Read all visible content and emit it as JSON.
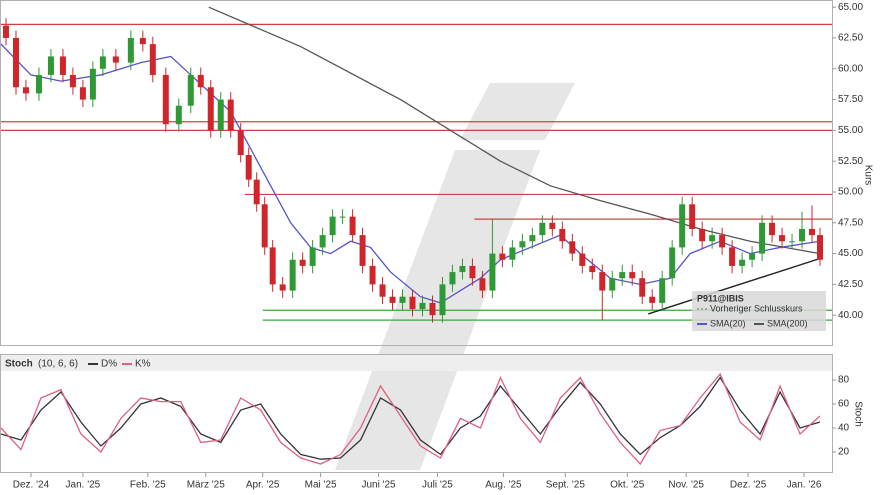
{
  "chart_data": [
    {
      "type": "candlestick",
      "ylabel": "Kurs",
      "xlim": [
        0,
        416
      ],
      "ylim": [
        37.5,
        65.5
      ],
      "yticks": [
        {
          "value": 40,
          "label": "40.00"
        },
        {
          "value": 42.5,
          "label": "42.50"
        },
        {
          "value": 45,
          "label": "45.00"
        },
        {
          "value": 47.5,
          "label": "47.50"
        },
        {
          "value": 50,
          "label": "50.00"
        },
        {
          "value": 52.5,
          "label": "52.50"
        },
        {
          "value": 55,
          "label": "55.00"
        },
        {
          "value": 57.5,
          "label": "57.50"
        },
        {
          "value": 60,
          "label": "60.00"
        },
        {
          "value": 62.5,
          "label": "62.50"
        },
        {
          "value": 65,
          "label": "65.00"
        }
      ],
      "xticks": [
        {
          "value": 15,
          "label": "Dez. '24"
        },
        {
          "value": 41,
          "label": "Jan. '25"
        },
        {
          "value": 73.5,
          "label": "Feb. '25"
        },
        {
          "value": 102.5,
          "label": "März '25"
        },
        {
          "value": 131,
          "label": "Apr. '25"
        },
        {
          "value": 160,
          "label": "Mai '25"
        },
        {
          "value": 189,
          "label": "Juni '25"
        },
        {
          "value": 218.5,
          "label": "Juli '25"
        },
        {
          "value": 251.5,
          "label": "Aug. '25"
        },
        {
          "value": 282.5,
          "label": "Sept. '25"
        },
        {
          "value": 313.5,
          "label": "Okt. '25"
        },
        {
          "value": 343,
          "label": "Nov. '25"
        },
        {
          "value": 374,
          "label": "Dez. '25"
        },
        {
          "value": 402,
          "label": "Jan. '26"
        }
      ],
      "up_color": "#2f9a35",
      "down_color": "#d0262b",
      "legend_title": "P911@IBIS",
      "legend_previous_close": "Vorheriger Schlusskurs",
      "x": [
        2.5,
        7.5,
        12.5,
        19,
        25,
        31,
        36,
        41,
        46,
        51,
        57.5,
        65,
        71,
        76,
        82.5,
        89,
        95,
        100,
        105,
        110,
        115,
        120,
        124,
        128,
        132,
        136,
        141,
        146,
        151,
        156,
        161,
        166,
        171,
        176,
        181,
        186,
        191,
        196,
        201,
        206,
        211,
        216,
        221,
        226,
        231,
        236,
        241,
        246,
        251,
        256,
        261,
        266,
        271,
        276,
        281,
        286,
        291,
        296,
        301,
        306,
        311,
        316,
        321,
        326,
        331,
        336,
        341,
        346,
        351,
        356,
        361,
        366,
        371,
        376,
        381,
        386,
        391,
        396,
        401,
        406,
        410
      ],
      "open": [
        63.5,
        62.5,
        58.5,
        58.0,
        59.5,
        61.0,
        59.5,
        58.5,
        57.5,
        60.0,
        61.0,
        60.5,
        62.5,
        62.0,
        59.5,
        55.5,
        57.0,
        59.5,
        58.5,
        55.0,
        57.5,
        55.0,
        53.0,
        51.0,
        49.0,
        45.5,
        42.5,
        42.0,
        44.5,
        44.0,
        45.5,
        46.5,
        48.0,
        48.0,
        46.5,
        44.0,
        42.5,
        41.5,
        41.0,
        41.5,
        40.5,
        41.0,
        40.0,
        42.5,
        43.5,
        44.0,
        43.0,
        42.0,
        45.0,
        44.5,
        45.5,
        46.0,
        46.5,
        47.5,
        47.0,
        46.0,
        45.0,
        44.0,
        43.5,
        42.0,
        43.0,
        43.5,
        43.0,
        41.5,
        41.0,
        43.0,
        45.5,
        49.0,
        47.0,
        46.0,
        46.5,
        45.5,
        44.0,
        44.5,
        45.0,
        47.5,
        46.5,
        46.0,
        46.0,
        47.0,
        46.5
      ],
      "high": [
        64.1,
        63.1,
        59.1,
        60.1,
        61.6,
        61.6,
        60.1,
        59.1,
        60.6,
        61.6,
        61.6,
        63.1,
        63.1,
        62.6,
        60.1,
        57.6,
        60.1,
        60.1,
        59.1,
        58.1,
        58.1,
        55.6,
        53.6,
        51.6,
        49.6,
        46.1,
        43.1,
        45.1,
        45.1,
        46.1,
        47.1,
        48.6,
        48.6,
        48.6,
        47.1,
        44.6,
        43.1,
        42.1,
        42.1,
        42.1,
        41.6,
        41.6,
        43.1,
        44.1,
        44.6,
        44.6,
        43.6,
        47.8,
        45.6,
        46.1,
        46.6,
        47.1,
        48.1,
        48.1,
        47.6,
        46.6,
        45.6,
        44.6,
        44.1,
        43.6,
        44.1,
        44.1,
        43.6,
        42.1,
        43.6,
        46.1,
        49.6,
        49.6,
        47.6,
        47.1,
        47.1,
        46.1,
        45.1,
        45.6,
        48.1,
        48.1,
        47.1,
        46.6,
        48.4,
        48.9,
        47.1
      ],
      "low": [
        61.9,
        57.9,
        57.4,
        57.4,
        58.9,
        58.9,
        57.9,
        56.9,
        56.9,
        59.4,
        59.9,
        59.9,
        61.4,
        58.9,
        54.9,
        54.9,
        56.4,
        57.9,
        54.4,
        54.4,
        54.4,
        52.4,
        50.4,
        48.4,
        44.9,
        41.9,
        41.4,
        41.4,
        43.4,
        43.4,
        44.9,
        45.9,
        47.4,
        45.9,
        43.4,
        41.9,
        40.9,
        40.4,
        40.4,
        39.9,
        39.9,
        39.4,
        39.4,
        41.9,
        42.9,
        42.4,
        41.4,
        41.4,
        43.9,
        43.9,
        44.9,
        45.4,
        45.9,
        46.4,
        45.4,
        44.4,
        43.4,
        42.9,
        39.6,
        41.4,
        42.4,
        42.4,
        40.9,
        40.4,
        40.4,
        42.4,
        44.9,
        46.4,
        45.4,
        45.4,
        44.9,
        43.4,
        43.4,
        43.9,
        44.4,
        45.9,
        45.4,
        45.4,
        45.4,
        45.9,
        44.0
      ],
      "close": [
        62.5,
        58.5,
        58.0,
        59.5,
        61.0,
        59.5,
        58.5,
        57.5,
        60.0,
        61.0,
        60.5,
        62.5,
        62.0,
        59.5,
        55.5,
        57.0,
        59.5,
        58.5,
        55.0,
        57.5,
        55.0,
        53.0,
        51.0,
        49.0,
        45.5,
        42.5,
        42.0,
        44.5,
        44.0,
        45.5,
        46.5,
        48.0,
        48.0,
        46.5,
        44.0,
        42.5,
        41.5,
        41.0,
        41.5,
        40.5,
        41.0,
        40.0,
        42.5,
        43.5,
        44.0,
        43.0,
        42.0,
        45.0,
        44.5,
        45.5,
        46.0,
        46.5,
        47.5,
        47.0,
        46.0,
        45.0,
        44.0,
        43.5,
        42.0,
        43.0,
        43.5,
        43.0,
        41.5,
        41.0,
        43.0,
        45.5,
        49.0,
        47.0,
        46.0,
        46.5,
        45.5,
        44.0,
        44.5,
        45.0,
        47.5,
        46.5,
        46.0,
        46.0,
        47.0,
        46.5,
        44.5
      ],
      "series": [
        {
          "name": "SMA(20)",
          "color": "#5555cc",
          "x": [
            0,
            15,
            30,
            50,
            70,
            85,
            95,
            105,
            115,
            125,
            135,
            145,
            155,
            165,
            175,
            185,
            195,
            210,
            220,
            230,
            240,
            250,
            265,
            280,
            290,
            305,
            320,
            335,
            345,
            360,
            375,
            390,
            410
          ],
          "values": [
            62.0,
            59.5,
            59.0,
            59.5,
            60.5,
            61.0,
            59.5,
            58.0,
            56.5,
            53.5,
            50.5,
            47.5,
            45.5,
            45.0,
            46.0,
            45.5,
            43.5,
            41.5,
            41.0,
            42.0,
            43.0,
            44.5,
            45.5,
            46.5,
            45.0,
            43.0,
            42.5,
            43.0,
            45.0,
            46.0,
            45.0,
            45.5,
            46.0
          ]
        },
        {
          "name": "SMA(200)",
          "color": "#555555",
          "x": [
            104,
            150,
            200,
            250,
            275,
            300,
            325,
            350,
            375,
            410
          ],
          "values": [
            65.0,
            61.8,
            57.5,
            52.5,
            50.5,
            49.3,
            48.2,
            47.0,
            46.0,
            45.0
          ]
        }
      ],
      "levels": [
        {
          "value": 63.6,
          "color": "#d04040",
          "from": 0
        },
        {
          "value": 55.7,
          "color": "#d04040",
          "from": 0
        },
        {
          "value": 55.0,
          "color": "#d04040",
          "from": 0
        },
        {
          "value": 49.8,
          "color": "#d04040",
          "from": 122
        },
        {
          "value": 47.8,
          "color": "#d04040",
          "from": 237
        },
        {
          "value": 40.4,
          "color": "#3aa83a",
          "from": 131
        },
        {
          "value": 39.6,
          "color": "#3aa83a",
          "from": 131
        }
      ],
      "trendline": {
        "x": [
          324,
          410
        ],
        "values": [
          40.1,
          44.6
        ]
      }
    },
    {
      "type": "line",
      "title": "Stoch",
      "subtitle": "(10, 6, 6)",
      "ylabel": "Stoch",
      "xlim": [
        0,
        416
      ],
      "ylim": [
        5,
        85
      ],
      "yticks": [
        20,
        40,
        60,
        80
      ],
      "x": [
        0,
        10,
        20,
        30,
        40,
        50,
        60,
        70,
        80,
        90,
        100,
        110,
        120,
        130,
        140,
        150,
        160,
        170,
        180,
        190,
        200,
        210,
        220,
        230,
        240,
        250,
        260,
        270,
        280,
        290,
        300,
        310,
        320,
        330,
        340,
        350,
        360,
        370,
        380,
        390,
        400,
        410
      ],
      "series": [
        {
          "name": "D%",
          "color": "#333333",
          "values": [
            35,
            30,
            55,
            70,
            45,
            25,
            40,
            60,
            65,
            58,
            35,
            28,
            55,
            60,
            35,
            18,
            14,
            15,
            30,
            65,
            55,
            30,
            18,
            40,
            50,
            75,
            55,
            35,
            58,
            78,
            60,
            35,
            18,
            32,
            42,
            58,
            82,
            55,
            35,
            70,
            40,
            45
          ]
        },
        {
          "name": "K%",
          "color": "#e0607e",
          "values": [
            40,
            22,
            65,
            72,
            35,
            20,
            48,
            65,
            62,
            62,
            28,
            30,
            65,
            55,
            28,
            15,
            10,
            18,
            40,
            75,
            50,
            25,
            15,
            48,
            40,
            82,
            48,
            28,
            65,
            82,
            52,
            28,
            10,
            38,
            42,
            65,
            85,
            45,
            30,
            75,
            35,
            50
          ]
        }
      ]
    }
  ]
}
